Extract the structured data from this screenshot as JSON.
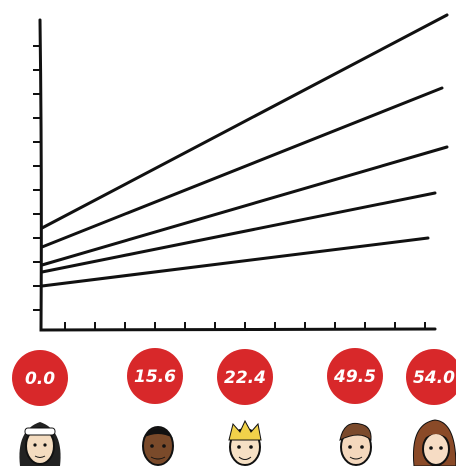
{
  "badges": [
    {
      "label": "0.0"
    },
    {
      "label": "15.6"
    },
    {
      "label": "22.4"
    },
    {
      "label": "49.5"
    },
    {
      "label": "54.0"
    }
  ]
}
